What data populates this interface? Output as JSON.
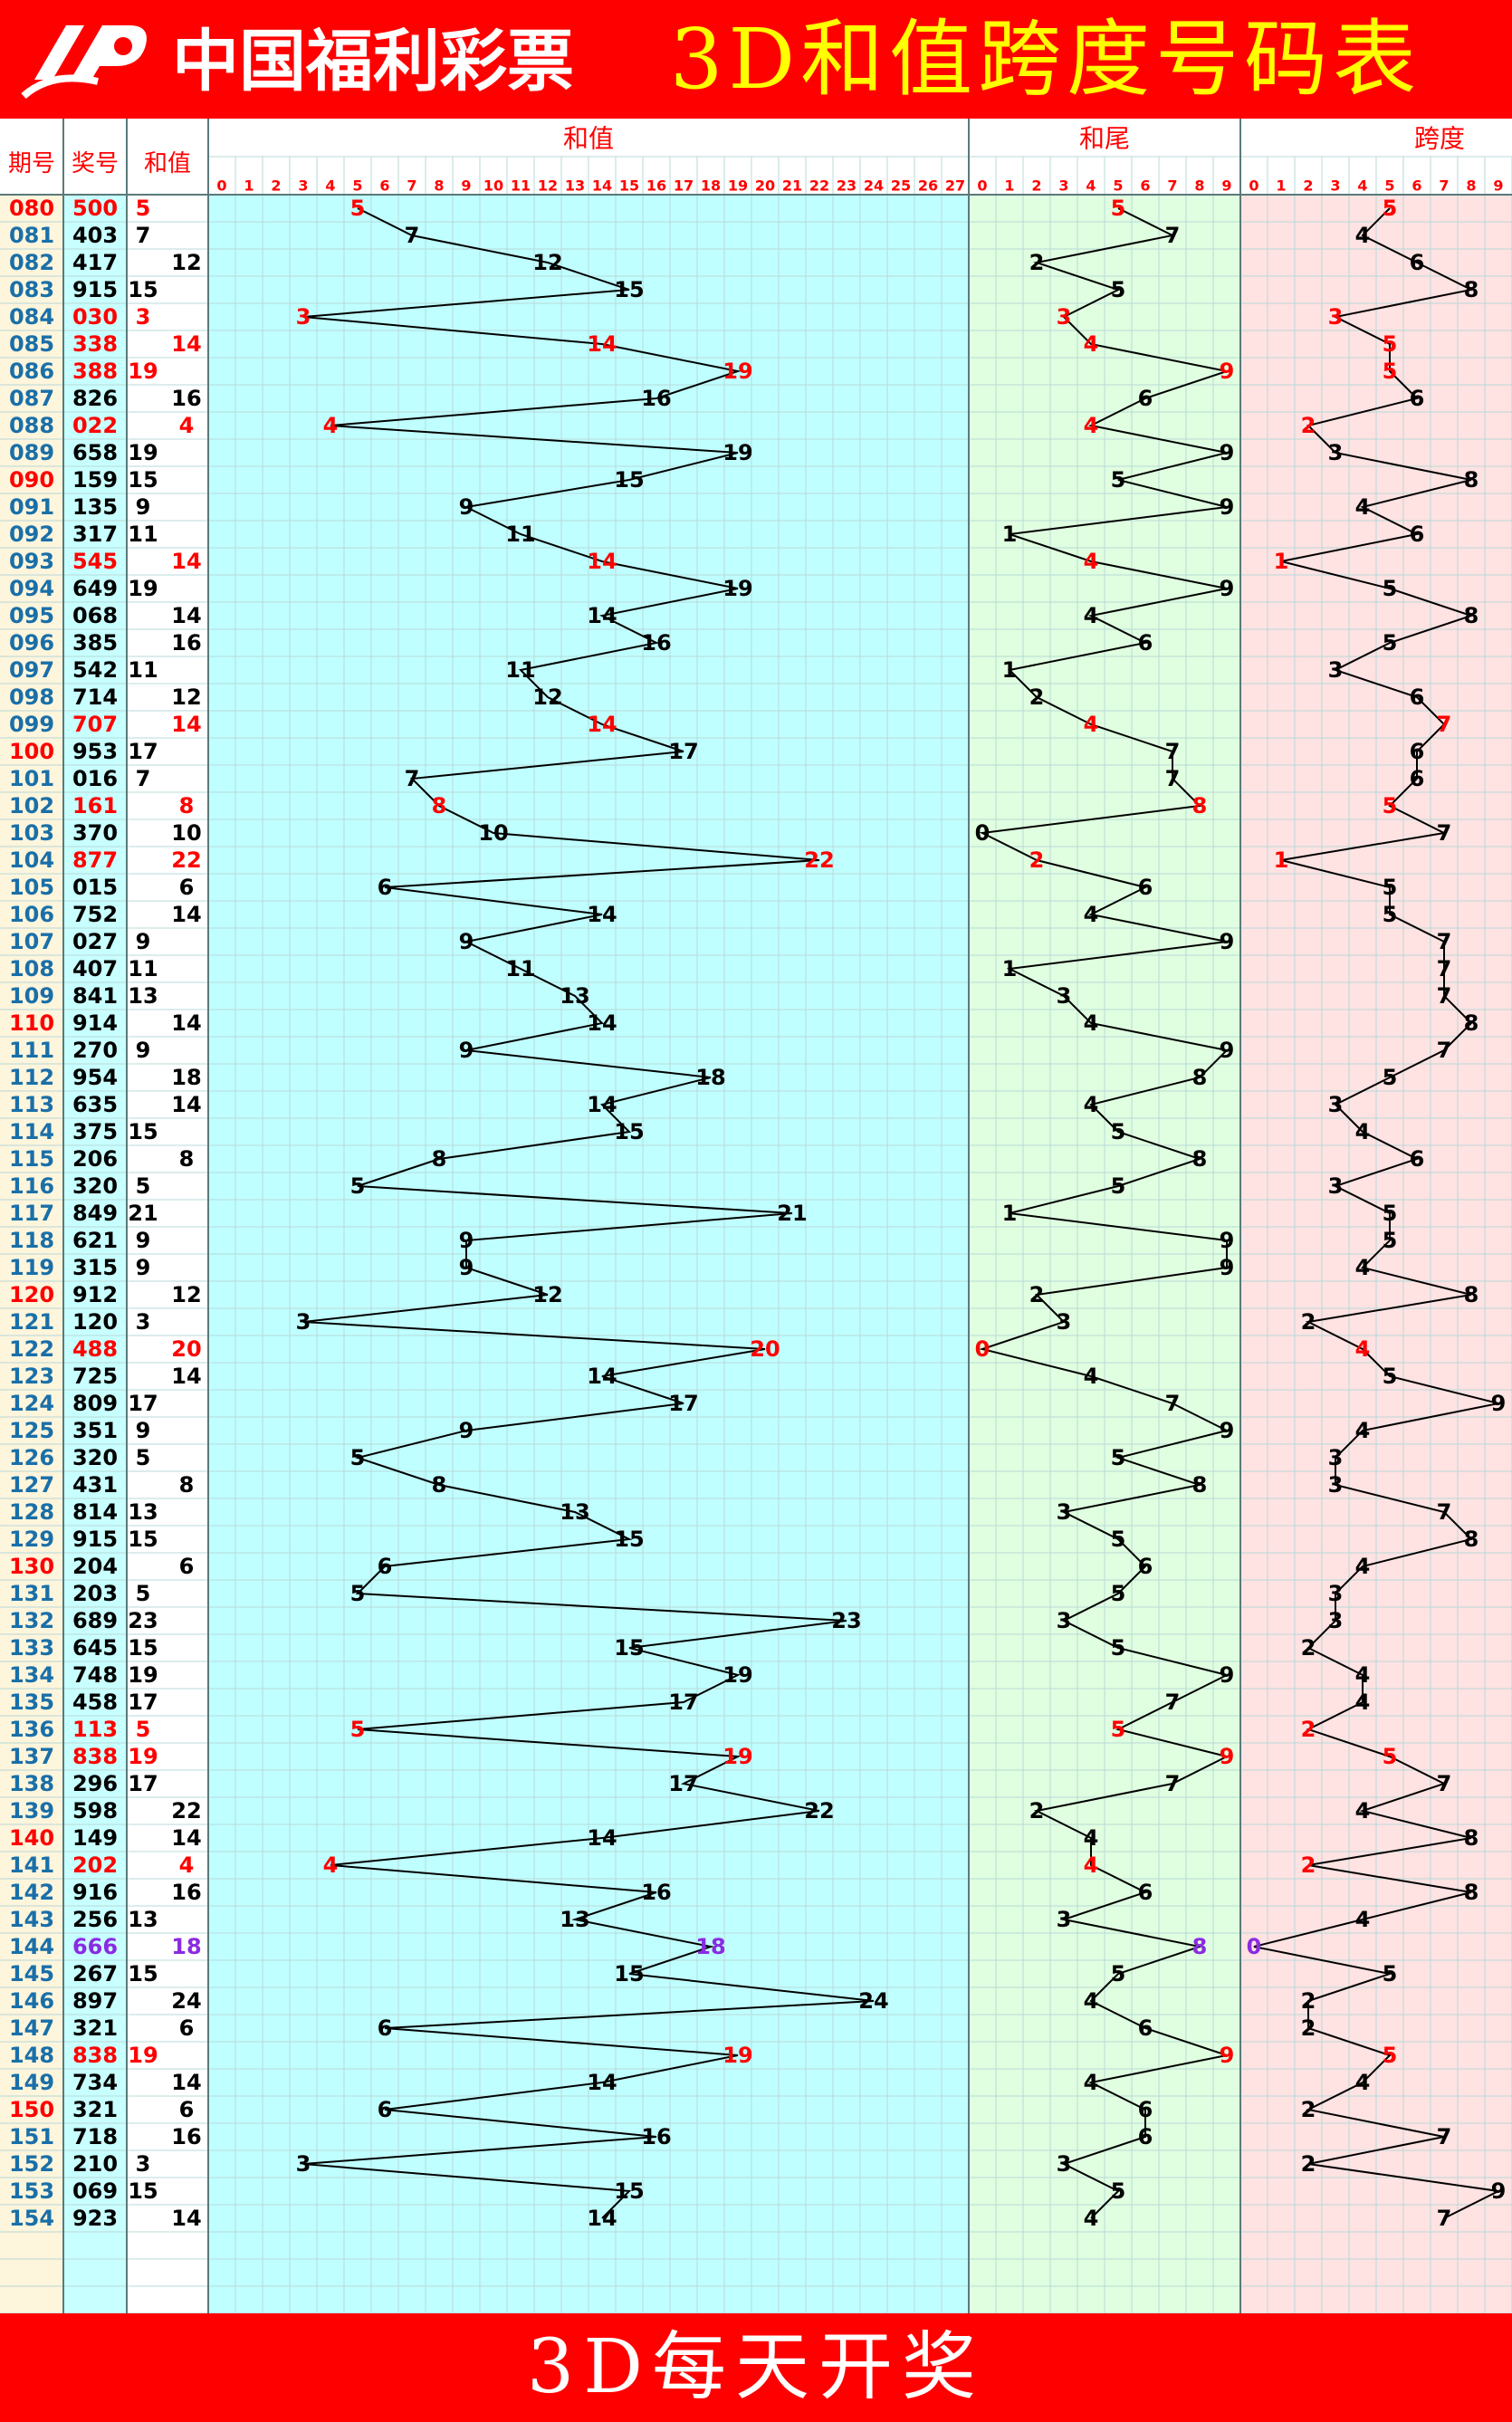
{
  "title": "3D和值跨度号码表",
  "footer": "3D每天开奖",
  "logo": {
    "text": "中国福利彩票",
    "icon": "lottery-logo-icon"
  },
  "colors": {
    "banner": "#ff0000",
    "title_text": "#ffff00",
    "footer_text": "#ffffff",
    "issue_col_bg": "#fdf5dc",
    "number_col_bg": "#c8ffff",
    "sum_region_bg": "#c0ffff",
    "tail_region_bg": "#e0ffe0",
    "span_region_bg": "#ffe2e2",
    "highlight_red": "#ff0000",
    "highlight_purple": "#8a2be2",
    "issue_blue": "#1a6fa8",
    "line": "#000000"
  },
  "chart_data": {
    "type": "table",
    "columns": {
      "issue": "期号",
      "number": "奖号",
      "sum": "和值"
    },
    "sections": [
      {
        "key": "sum",
        "label": "和值",
        "range": [
          0,
          27
        ]
      },
      {
        "key": "tail",
        "label": "和尾",
        "range": [
          0,
          9
        ]
      },
      {
        "key": "span",
        "label": "跨度",
        "range": [
          0,
          9
        ]
      }
    ],
    "rows": [
      {
        "issue": "080",
        "number": "500",
        "sum": 5,
        "tail": 5,
        "span": 5
      },
      {
        "issue": "081",
        "number": "403",
        "sum": 7,
        "tail": 7,
        "span": 4
      },
      {
        "issue": "082",
        "number": "417",
        "sum": 12,
        "tail": 2,
        "span": 6
      },
      {
        "issue": "083",
        "number": "915",
        "sum": 15,
        "tail": 5,
        "span": 8
      },
      {
        "issue": "084",
        "number": "030",
        "sum": 3,
        "tail": 3,
        "span": 3
      },
      {
        "issue": "085",
        "number": "338",
        "sum": 14,
        "tail": 4,
        "span": 5
      },
      {
        "issue": "086",
        "number": "388",
        "sum": 19,
        "tail": 9,
        "span": 5
      },
      {
        "issue": "087",
        "number": "826",
        "sum": 16,
        "tail": 6,
        "span": 6
      },
      {
        "issue": "088",
        "number": "022",
        "sum": 4,
        "tail": 4,
        "span": 2
      },
      {
        "issue": "089",
        "number": "658",
        "sum": 19,
        "tail": 9,
        "span": 3
      },
      {
        "issue": "090",
        "number": "159",
        "sum": 15,
        "tail": 5,
        "span": 8
      },
      {
        "issue": "091",
        "number": "135",
        "sum": 9,
        "tail": 9,
        "span": 4
      },
      {
        "issue": "092",
        "number": "317",
        "sum": 11,
        "tail": 1,
        "span": 6
      },
      {
        "issue": "093",
        "number": "545",
        "sum": 14,
        "tail": 4,
        "span": 1
      },
      {
        "issue": "094",
        "number": "649",
        "sum": 19,
        "tail": 9,
        "span": 5
      },
      {
        "issue": "095",
        "number": "068",
        "sum": 14,
        "tail": 4,
        "span": 8
      },
      {
        "issue": "096",
        "number": "385",
        "sum": 16,
        "tail": 6,
        "span": 5
      },
      {
        "issue": "097",
        "number": "542",
        "sum": 11,
        "tail": 1,
        "span": 3
      },
      {
        "issue": "098",
        "number": "714",
        "sum": 12,
        "tail": 2,
        "span": 6
      },
      {
        "issue": "099",
        "number": "707",
        "sum": 14,
        "tail": 4,
        "span": 7
      },
      {
        "issue": "100",
        "number": "953",
        "sum": 17,
        "tail": 7,
        "span": 6
      },
      {
        "issue": "101",
        "number": "016",
        "sum": 7,
        "tail": 7,
        "span": 6
      },
      {
        "issue": "102",
        "number": "161",
        "sum": 8,
        "tail": 8,
        "span": 5
      },
      {
        "issue": "103",
        "number": "370",
        "sum": 10,
        "tail": 0,
        "span": 7
      },
      {
        "issue": "104",
        "number": "877",
        "sum": 22,
        "tail": 2,
        "span": 1
      },
      {
        "issue": "105",
        "number": "015",
        "sum": 6,
        "tail": 6,
        "span": 5
      },
      {
        "issue": "106",
        "number": "752",
        "sum": 14,
        "tail": 4,
        "span": 5
      },
      {
        "issue": "107",
        "number": "027",
        "sum": 9,
        "tail": 9,
        "span": 7
      },
      {
        "issue": "108",
        "number": "407",
        "sum": 11,
        "tail": 1,
        "span": 7
      },
      {
        "issue": "109",
        "number": "841",
        "sum": 13,
        "tail": 3,
        "span": 7
      },
      {
        "issue": "110",
        "number": "914",
        "sum": 14,
        "tail": 4,
        "span": 8
      },
      {
        "issue": "111",
        "number": "270",
        "sum": 9,
        "tail": 9,
        "span": 7
      },
      {
        "issue": "112",
        "number": "954",
        "sum": 18,
        "tail": 8,
        "span": 5
      },
      {
        "issue": "113",
        "number": "635",
        "sum": 14,
        "tail": 4,
        "span": 3
      },
      {
        "issue": "114",
        "number": "375",
        "sum": 15,
        "tail": 5,
        "span": 4
      },
      {
        "issue": "115",
        "number": "206",
        "sum": 8,
        "tail": 8,
        "span": 6
      },
      {
        "issue": "116",
        "number": "320",
        "sum": 5,
        "tail": 5,
        "span": 3
      },
      {
        "issue": "117",
        "number": "849",
        "sum": 21,
        "tail": 1,
        "span": 5
      },
      {
        "issue": "118",
        "number": "621",
        "sum": 9,
        "tail": 9,
        "span": 5
      },
      {
        "issue": "119",
        "number": "315",
        "sum": 9,
        "tail": 9,
        "span": 4
      },
      {
        "issue": "120",
        "number": "912",
        "sum": 12,
        "tail": 2,
        "span": 8
      },
      {
        "issue": "121",
        "number": "120",
        "sum": 3,
        "tail": 3,
        "span": 2
      },
      {
        "issue": "122",
        "number": "488",
        "sum": 20,
        "tail": 0,
        "span": 4
      },
      {
        "issue": "123",
        "number": "725",
        "sum": 14,
        "tail": 4,
        "span": 5
      },
      {
        "issue": "124",
        "number": "809",
        "sum": 17,
        "tail": 7,
        "span": 9
      },
      {
        "issue": "125",
        "number": "351",
        "sum": 9,
        "tail": 9,
        "span": 4
      },
      {
        "issue": "126",
        "number": "320",
        "sum": 5,
        "tail": 5,
        "span": 3
      },
      {
        "issue": "127",
        "number": "431",
        "sum": 8,
        "tail": 8,
        "span": 3
      },
      {
        "issue": "128",
        "number": "814",
        "sum": 13,
        "tail": 3,
        "span": 7
      },
      {
        "issue": "129",
        "number": "915",
        "sum": 15,
        "tail": 5,
        "span": 8
      },
      {
        "issue": "130",
        "number": "204",
        "sum": 6,
        "tail": 6,
        "span": 4
      },
      {
        "issue": "131",
        "number": "203",
        "sum": 5,
        "tail": 5,
        "span": 3
      },
      {
        "issue": "132",
        "number": "689",
        "sum": 23,
        "tail": 3,
        "span": 3
      },
      {
        "issue": "133",
        "number": "645",
        "sum": 15,
        "tail": 5,
        "span": 2
      },
      {
        "issue": "134",
        "number": "748",
        "sum": 19,
        "tail": 9,
        "span": 4
      },
      {
        "issue": "135",
        "number": "458",
        "sum": 17,
        "tail": 7,
        "span": 4
      },
      {
        "issue": "136",
        "number": "113",
        "sum": 5,
        "tail": 5,
        "span": 2
      },
      {
        "issue": "137",
        "number": "838",
        "sum": 19,
        "tail": 9,
        "span": 5
      },
      {
        "issue": "138",
        "number": "296",
        "sum": 17,
        "tail": 7,
        "span": 7
      },
      {
        "issue": "139",
        "number": "598",
        "sum": 22,
        "tail": 2,
        "span": 4
      },
      {
        "issue": "140",
        "number": "149",
        "sum": 14,
        "tail": 4,
        "span": 8
      },
      {
        "issue": "141",
        "number": "202",
        "sum": 4,
        "tail": 4,
        "span": 2
      },
      {
        "issue": "142",
        "number": "916",
        "sum": 16,
        "tail": 6,
        "span": 8
      },
      {
        "issue": "143",
        "number": "256",
        "sum": 13,
        "tail": 3,
        "span": 4
      },
      {
        "issue": "144",
        "number": "666",
        "sum": 18,
        "tail": 8,
        "span": 0
      },
      {
        "issue": "145",
        "number": "267",
        "sum": 15,
        "tail": 5,
        "span": 5
      },
      {
        "issue": "146",
        "number": "897",
        "sum": 24,
        "tail": 4,
        "span": 2
      },
      {
        "issue": "147",
        "number": "321",
        "sum": 6,
        "tail": 6,
        "span": 2
      },
      {
        "issue": "148",
        "number": "838",
        "sum": 19,
        "tail": 9,
        "span": 5
      },
      {
        "issue": "149",
        "number": "734",
        "sum": 14,
        "tail": 4,
        "span": 4
      },
      {
        "issue": "150",
        "number": "321",
        "sum": 6,
        "tail": 6,
        "span": 2
      },
      {
        "issue": "151",
        "number": "718",
        "sum": 16,
        "tail": 6,
        "span": 7
      },
      {
        "issue": "152",
        "number": "210",
        "sum": 3,
        "tail": 3,
        "span": 2
      },
      {
        "issue": "153",
        "number": "069",
        "sum": 15,
        "tail": 5,
        "span": 9
      },
      {
        "issue": "154",
        "number": "923",
        "sum": 14,
        "tail": 4,
        "span": 7
      }
    ]
  }
}
